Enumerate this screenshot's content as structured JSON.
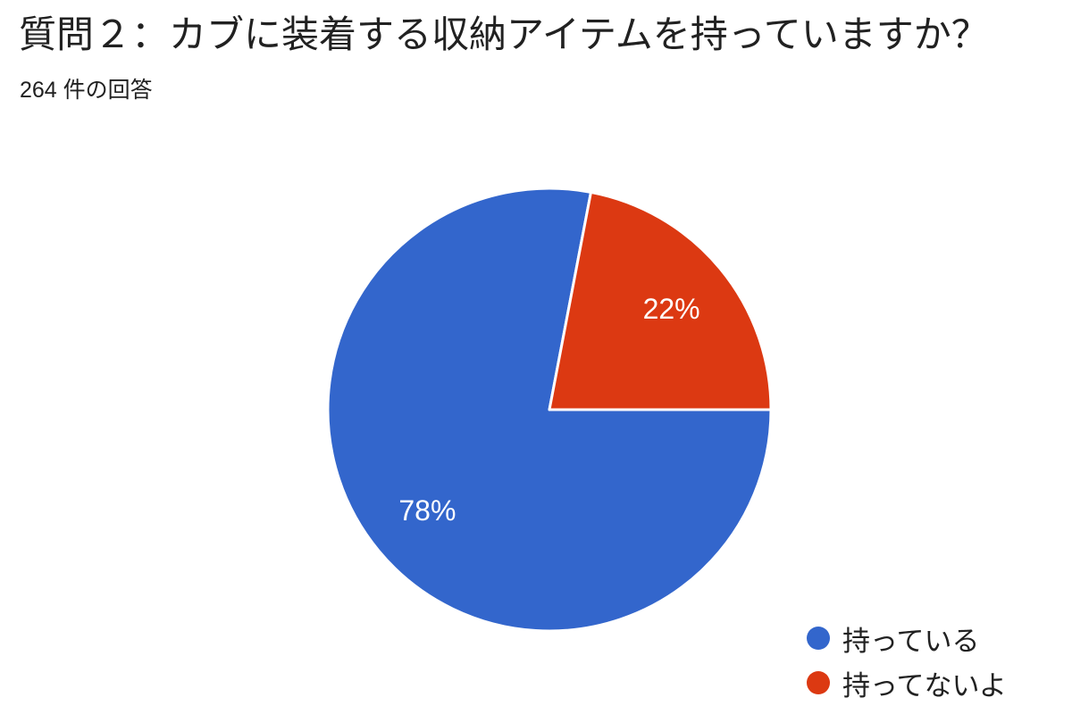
{
  "chart_data": {
    "type": "pie",
    "title": "質問２：カブに装着する収納アイテムを持っていますか？",
    "subtitle": "264 件の回答",
    "response_count": 264,
    "legend_position": "bottom-right",
    "start_angle_deg": 90,
    "direction": "clockwise",
    "data_label_color": "#ffffff",
    "slice_border_color": "#ffffff",
    "slices": [
      {
        "label": "持っている",
        "percent": 78,
        "color": "#3366cc",
        "data_label": "78%"
      },
      {
        "label": "持ってないよ",
        "percent": 22,
        "color": "#dc3912",
        "data_label": "22%"
      }
    ]
  }
}
